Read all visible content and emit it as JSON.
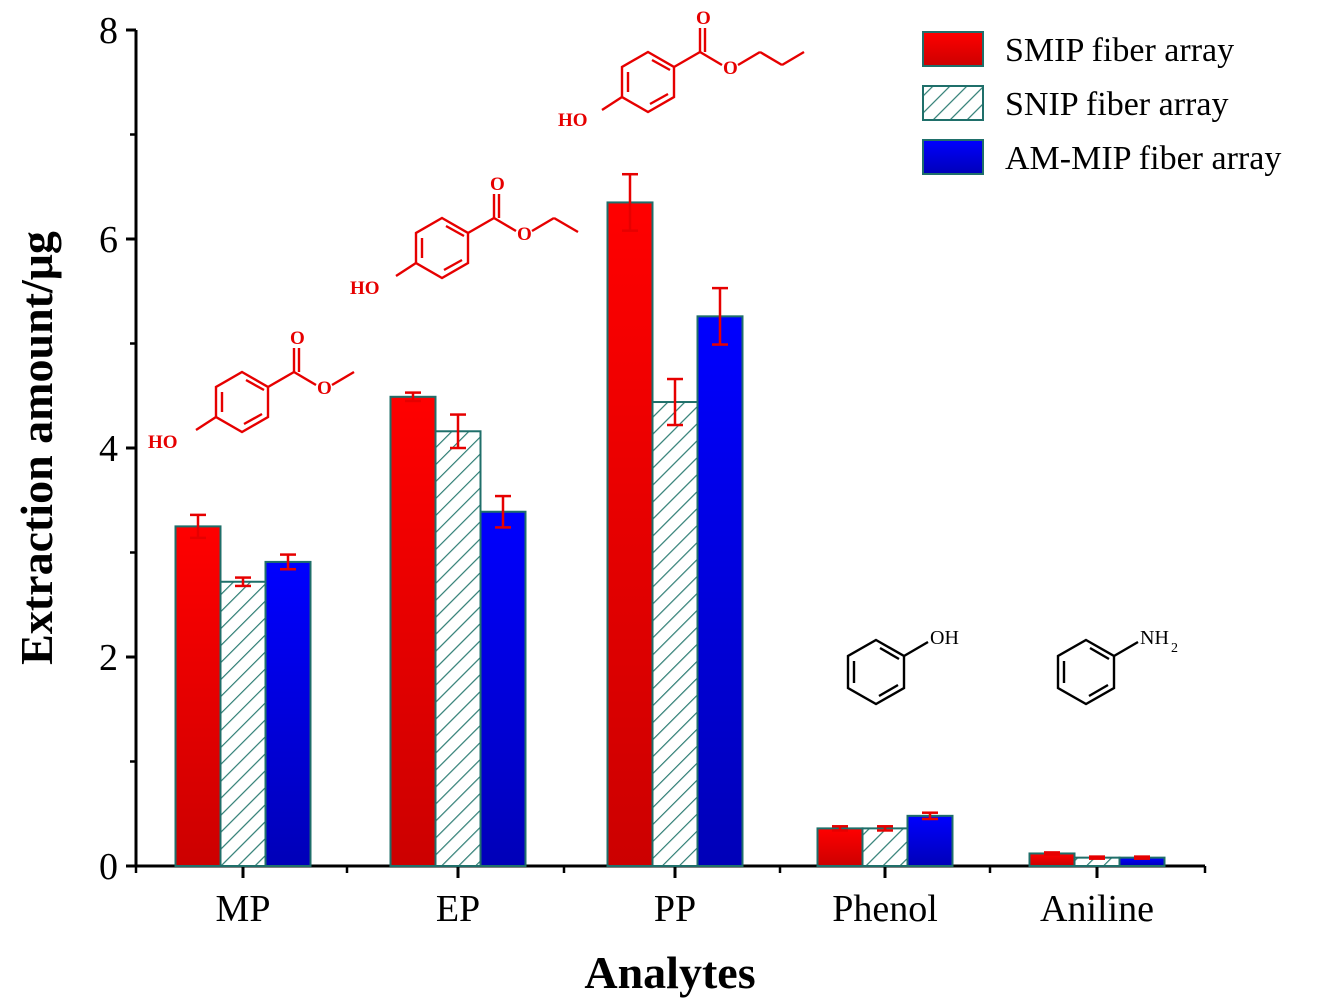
{
  "chart_data": {
    "type": "bar",
    "title": "",
    "xlabel": "Analytes",
    "ylabel": "Extraction amount/μg",
    "categories": [
      "MP",
      "EP",
      "PP",
      "Phenol",
      "Aniline"
    ],
    "ylim": [
      0,
      8
    ],
    "yticks": [
      "0",
      "2",
      "4",
      "6",
      "8"
    ],
    "legend_position": "top-right",
    "series": [
      {
        "name": "SMIP fiber array",
        "style": "solid",
        "color": "#e60000",
        "values": [
          3.25,
          4.49,
          6.35,
          0.36,
          0.12
        ],
        "errors": [
          0.11,
          0.04,
          0.27,
          0.02,
          0.01
        ]
      },
      {
        "name": "SNIP fiber array",
        "style": "hatched",
        "color": "#2e7d74",
        "values": [
          2.72,
          4.16,
          4.44,
          0.36,
          0.08
        ],
        "errors": [
          0.04,
          0.16,
          0.22,
          0.02,
          0.01
        ]
      },
      {
        "name": "AM-MIP fiber array",
        "style": "solid",
        "color": "#0000e6",
        "values": [
          2.91,
          3.39,
          5.26,
          0.48,
          0.08
        ],
        "errors": [
          0.07,
          0.15,
          0.27,
          0.03,
          0.01
        ]
      }
    ]
  },
  "structures": {
    "mp": {
      "label": "HO"
    },
    "ep": {
      "label": "HO"
    },
    "pp": {
      "label": "HO"
    },
    "phenol": {
      "label": "OH"
    },
    "aniline": {
      "label": "NH",
      "subscript": "2"
    }
  },
  "colors": {
    "error_bar": "#e60000",
    "bar_edge": "#1f6f6a",
    "structure_red": "#e60000",
    "structure_black": "#000000"
  }
}
